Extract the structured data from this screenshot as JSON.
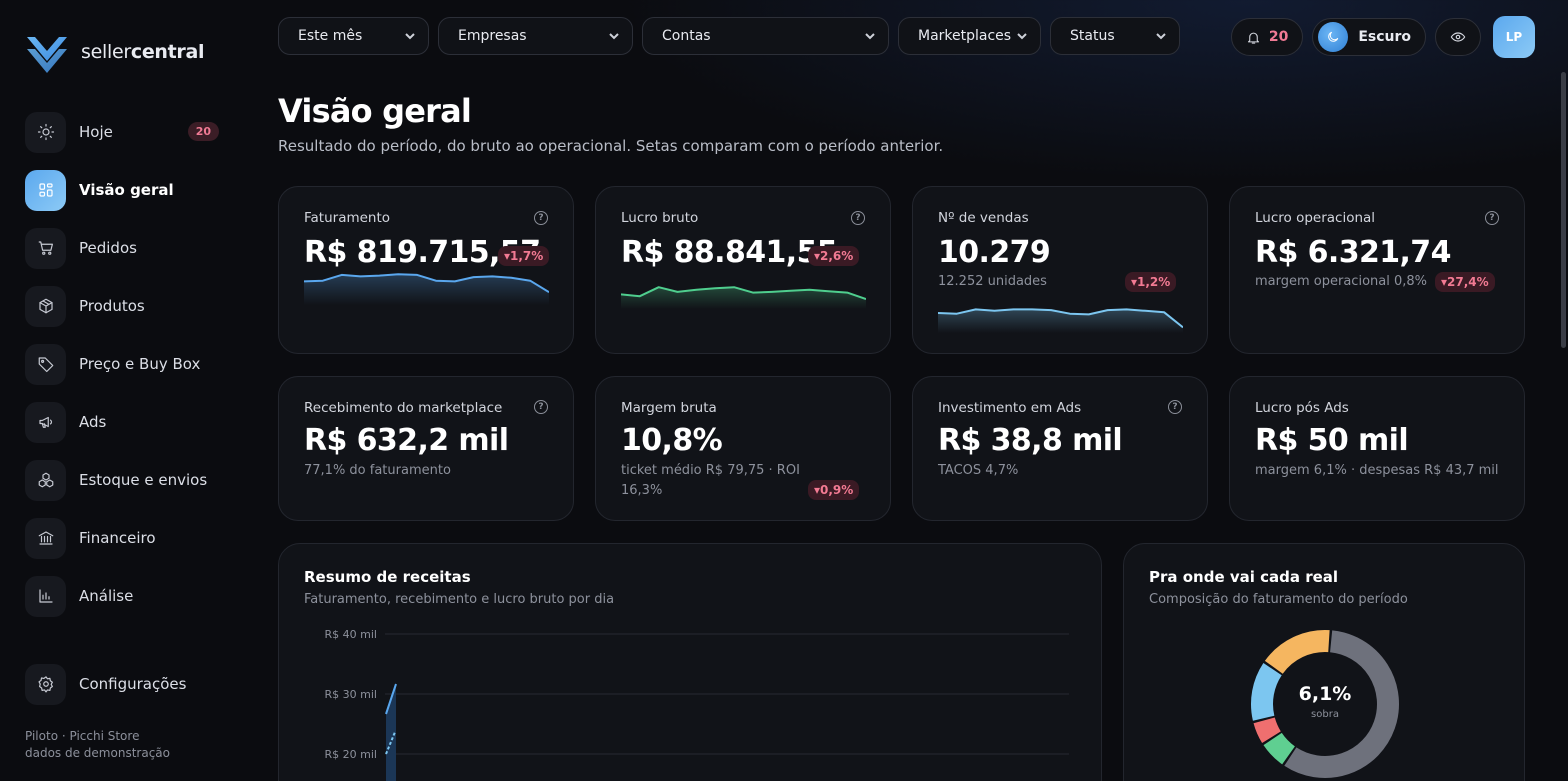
{
  "app": {
    "logo_regular": "seller",
    "logo_bold": "central",
    "footer_line1": "Piloto · Picchi Store",
    "footer_line2": "dados de demonstração"
  },
  "sidebar": {
    "items": [
      {
        "label": "Hoje",
        "icon": "sun-icon",
        "badge": "20"
      },
      {
        "label": "Visão geral",
        "icon": "grid-icon",
        "active": true
      },
      {
        "label": "Pedidos",
        "icon": "cart-icon"
      },
      {
        "label": "Produtos",
        "icon": "box-icon"
      },
      {
        "label": "Preço e Buy Box",
        "icon": "tag-icon"
      },
      {
        "label": "Ads",
        "icon": "megaphone-icon"
      },
      {
        "label": "Estoque e envios",
        "icon": "stack-icon"
      },
      {
        "label": "Financeiro",
        "icon": "bank-icon"
      },
      {
        "label": "Análise",
        "icon": "bar-chart-icon"
      }
    ],
    "settings_label": "Configurações"
  },
  "filters": {
    "period": "Este mês",
    "companies": "Empresas",
    "accounts": "Contas",
    "marketplaces": "Marketplaces",
    "status": "Status"
  },
  "header": {
    "notifications_count": "20",
    "theme_label": "Escuro",
    "avatar_initials": "LP"
  },
  "page": {
    "title": "Visão geral",
    "subtitle": "Resultado do período, do bruto ao operacional. Setas comparam com o período anterior."
  },
  "kpis": [
    {
      "label": "Faturamento",
      "value": "R$ 819.715,57",
      "delta": "▾1,7%",
      "help": true
    },
    {
      "label": "Lucro bruto",
      "value": "R$ 88.841,55",
      "delta": "▾2,6%",
      "help": true
    },
    {
      "label": "Nº de vendas",
      "value": "10.279",
      "sub": "12.252 unidades",
      "delta": "▾1,2%"
    },
    {
      "label": "Lucro operacional",
      "value": "R$ 6.321,74",
      "sub": "margem operacional 0,8%",
      "delta": "▾27,4%",
      "help": true
    },
    {
      "label": "Recebimento do marketplace",
      "value": "R$ 632,2 mil",
      "sub": "77,1% do faturamento",
      "help": true
    },
    {
      "label": "Margem bruta",
      "value": "10,8%",
      "sub_line1": "ticket médio R$ 79,75 · ROI",
      "sub_line2": "16,3%",
      "delta": "▾0,9%"
    },
    {
      "label": "Investimento em Ads",
      "value": "R$ 38,8 mil",
      "sub": "TACOS 4,7%",
      "help": true
    },
    {
      "label": "Lucro pós Ads",
      "value": "R$ 50 mil",
      "sub": "margem 6,1% · despesas R$ 43,7 mil"
    }
  ],
  "sparklines": {
    "faturamento": [
      0.6,
      0.62,
      0.78,
      0.74,
      0.76,
      0.8,
      0.78,
      0.62,
      0.6,
      0.72,
      0.74,
      0.7,
      0.62,
      0.3
    ],
    "lucro_bruto": [
      0.35,
      0.3,
      0.55,
      0.42,
      0.48,
      0.52,
      0.55,
      0.4,
      0.42,
      0.45,
      0.48,
      0.44,
      0.4,
      0.22
    ],
    "vendas": [
      0.5,
      0.48,
      0.6,
      0.56,
      0.6,
      0.6,
      0.58,
      0.48,
      0.46,
      0.58,
      0.6,
      0.56,
      0.52,
      0.1
    ],
    "colors": {
      "faturamento": "#5aa7ee",
      "lucro_bruto": "#4fce8e",
      "vendas": "#7cc6f0"
    }
  },
  "revenue_panel": {
    "title": "Resumo de receitas",
    "subtitle": "Faturamento, recebimento e lucro bruto por dia",
    "y_ticks": [
      "R$ 40 mil",
      "R$ 30 mil",
      "R$ 20 mil"
    ]
  },
  "composition_panel": {
    "title": "Pra onde vai cada real",
    "subtitle": "Composição do faturamento do período",
    "center_value": "6,1%",
    "center_label": "sobra"
  },
  "chart_data": [
    {
      "type": "line",
      "title": "Resumo de receitas",
      "ylabel": "",
      "y_ticks": [
        "R$ 40 mil",
        "R$ 30 mil",
        "R$ 20 mil"
      ],
      "grid": true
    },
    {
      "type": "pie",
      "title": "Pra onde vai cada real",
      "center_value": "6,1%",
      "series": [
        {
          "name": "",
          "value": 56,
          "color": "#6e717c"
        },
        {
          "name": "",
          "value": 6.1,
          "color": "#5fcf91"
        },
        {
          "name": "",
          "value": 5,
          "color": "#ef6f6f"
        },
        {
          "name": "",
          "value": 13,
          "color": "#7cc6f0"
        },
        {
          "name": "",
          "value": 16,
          "color": "#f5b660"
        }
      ]
    }
  ]
}
